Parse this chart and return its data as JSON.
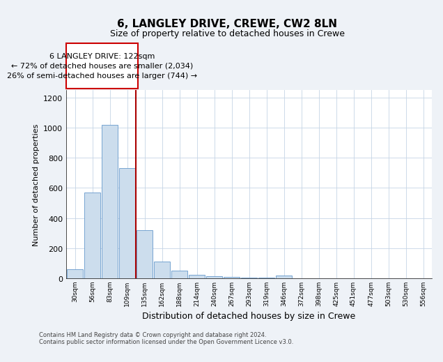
{
  "title1": "6, LANGLEY DRIVE, CREWE, CW2 8LN",
  "title2": "Size of property relative to detached houses in Crewe",
  "xlabel": "Distribution of detached houses by size in Crewe",
  "ylabel": "Number of detached properties",
  "bin_labels": [
    "30sqm",
    "56sqm",
    "83sqm",
    "109sqm",
    "135sqm",
    "162sqm",
    "188sqm",
    "214sqm",
    "240sqm",
    "267sqm",
    "293sqm",
    "319sqm",
    "346sqm",
    "372sqm",
    "398sqm",
    "425sqm",
    "451sqm",
    "477sqm",
    "503sqm",
    "530sqm",
    "556sqm"
  ],
  "bar_heights": [
    60,
    570,
    1020,
    730,
    320,
    110,
    50,
    25,
    15,
    10,
    5,
    5,
    20,
    0,
    0,
    0,
    0,
    0,
    0,
    0,
    0
  ],
  "bar_color": "#ccdded",
  "bar_edgecolor": "#6699cc",
  "property_line_color": "#aa0000",
  "annotation_text_line1": "6 LANGLEY DRIVE: 122sqm",
  "annotation_text_line2": "← 72% of detached houses are smaller (2,034)",
  "annotation_text_line3": "26% of semi-detached houses are larger (744) →",
  "annotation_box_edgecolor": "#cc0000",
  "annotation_box_facecolor": "#ffffff",
  "ylim": [
    0,
    1250
  ],
  "yticks": [
    0,
    200,
    400,
    600,
    800,
    1000,
    1200
  ],
  "footer_text": "Contains HM Land Registry data © Crown copyright and database right 2024.\nContains public sector information licensed under the Open Government Licence v3.0.",
  "bg_color": "#eef2f7",
  "plot_bg_color": "#ffffff",
  "grid_color": "#c5d5e5",
  "title1_fontsize": 11,
  "title2_fontsize": 9,
  "ylabel_fontsize": 8,
  "xlabel_fontsize": 9,
  "annotation_fontsize": 8,
  "footer_fontsize": 6
}
